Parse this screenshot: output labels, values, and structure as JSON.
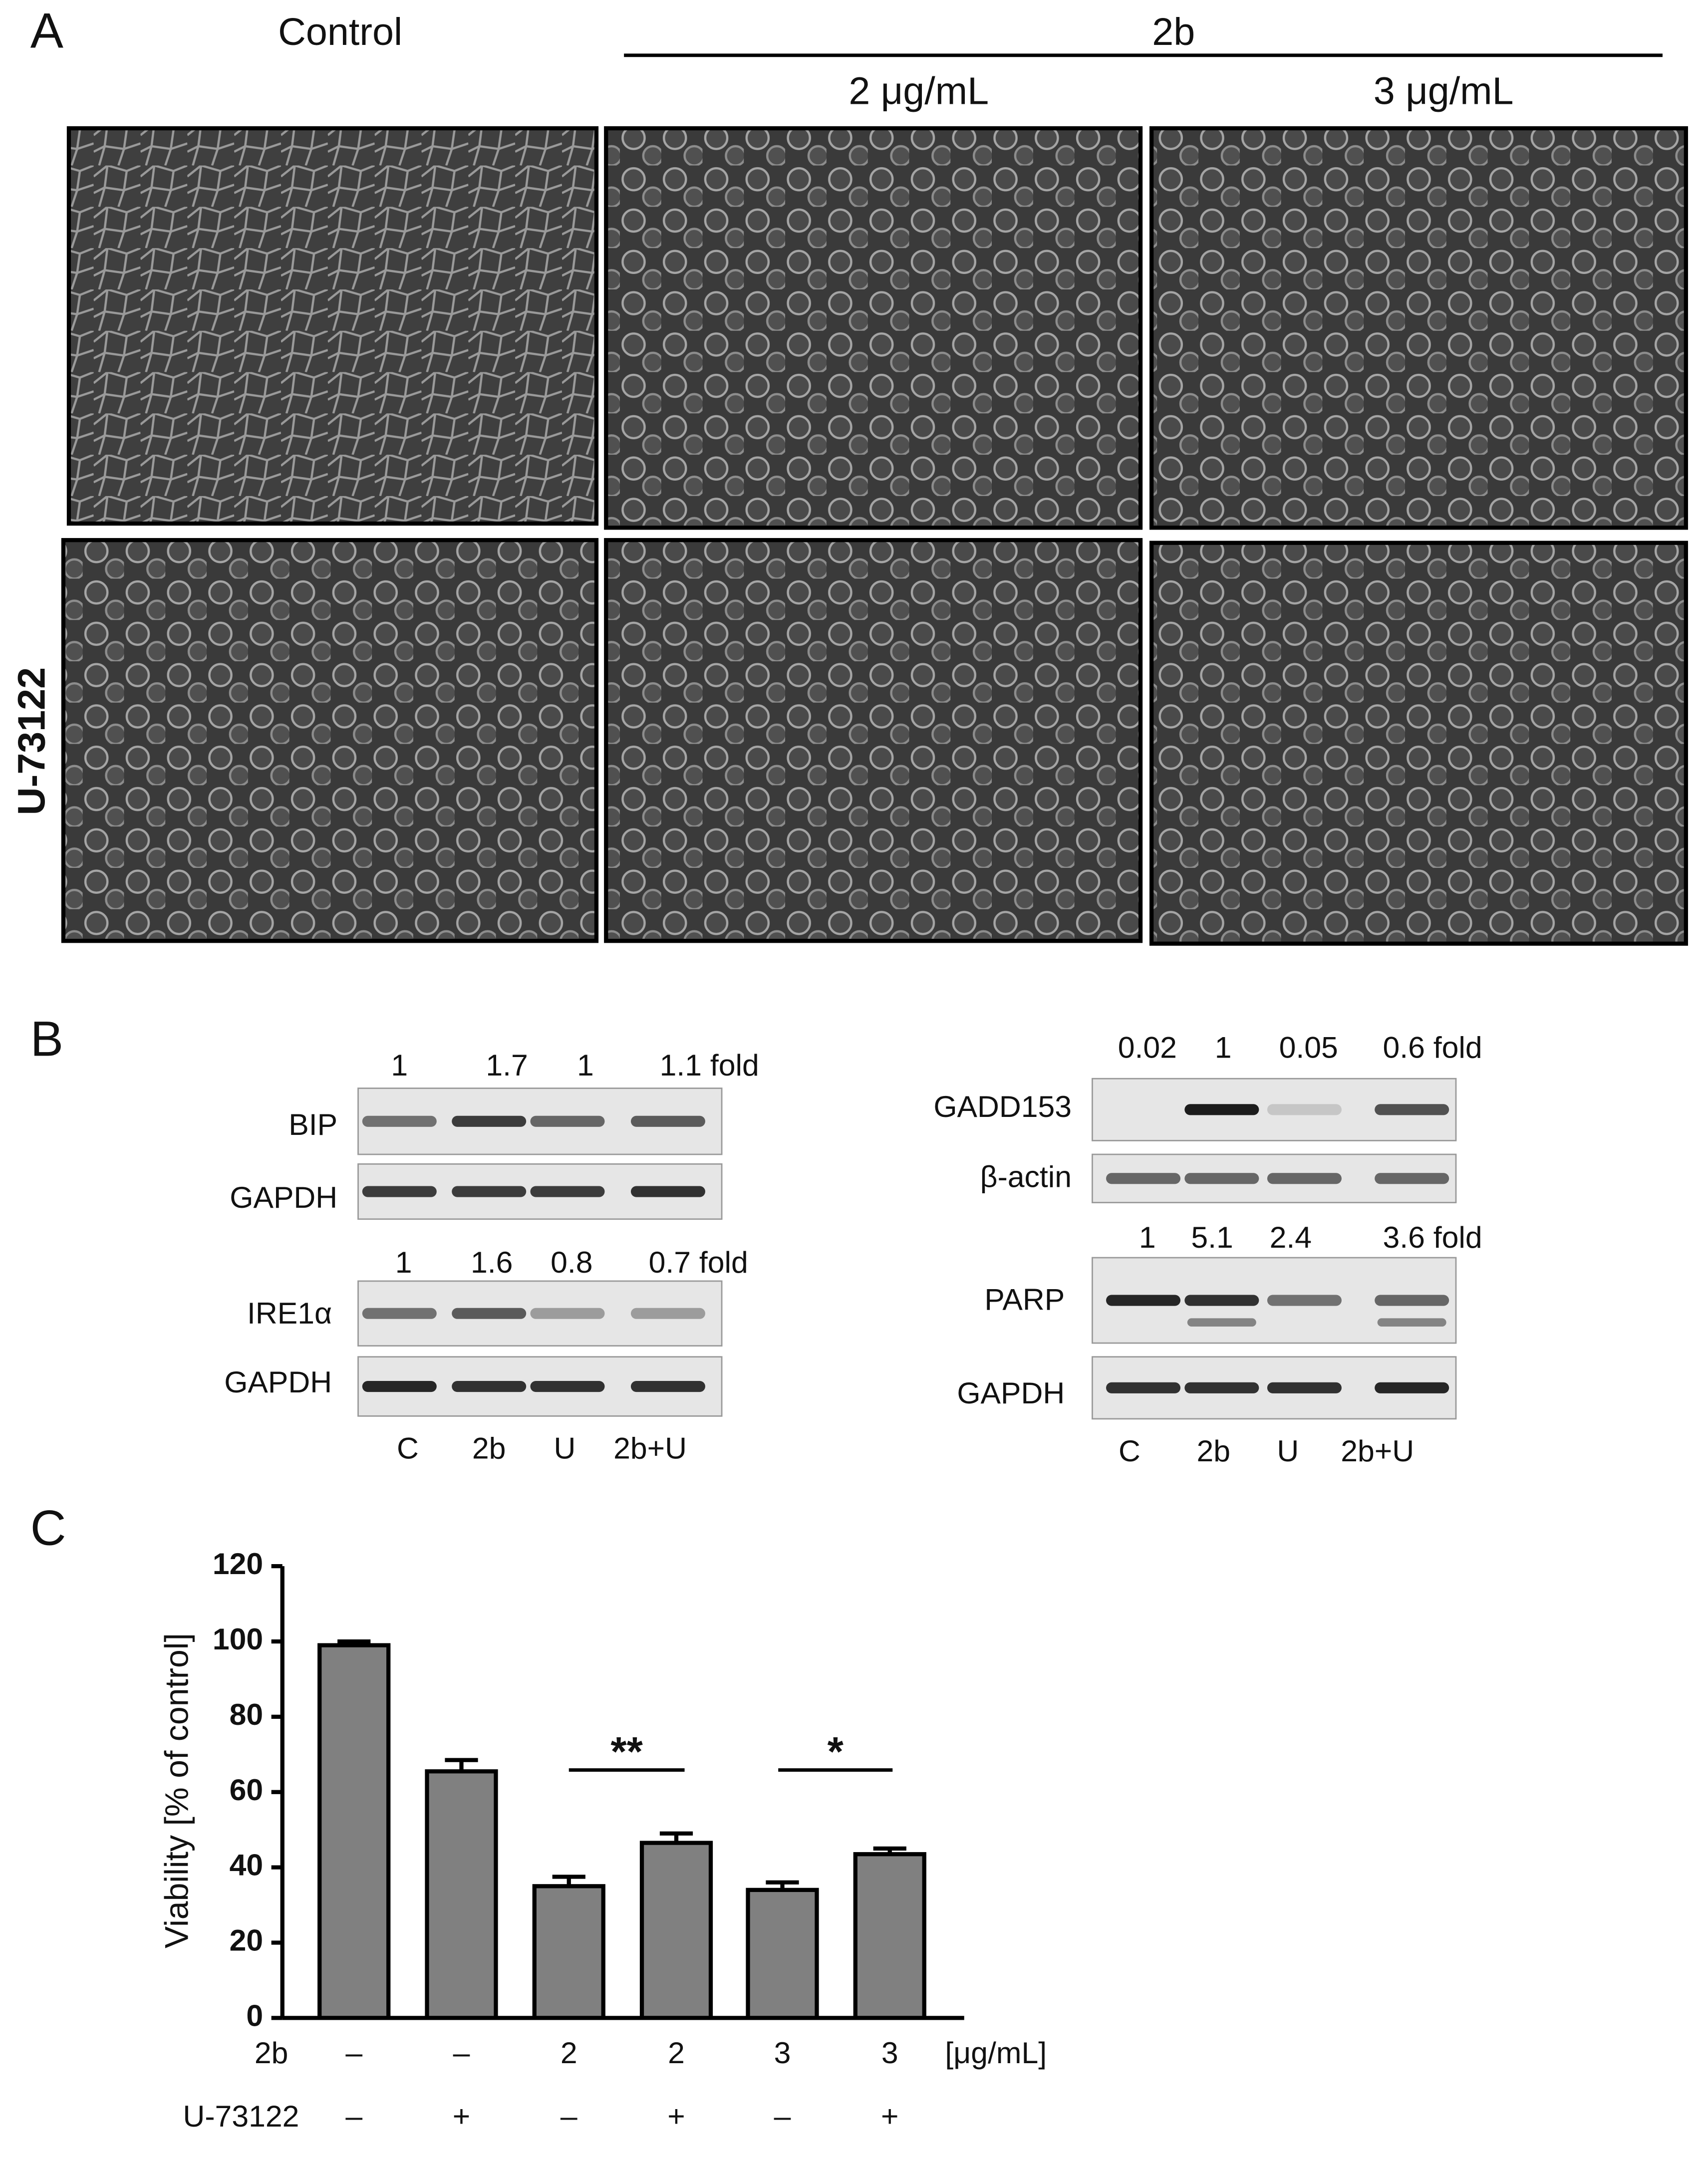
{
  "panel_a": {
    "label": "A",
    "columns": [
      "Control",
      "2 μg/mL",
      "3 μg/mL"
    ],
    "group": "2b",
    "row_label": "U-73122"
  },
  "panel_b": {
    "label": "B",
    "left": [
      {
        "folds": [
          "1",
          "1.7",
          "1",
          "1.1 fold"
        ],
        "rows": [
          "BIP",
          "GAPDH"
        ]
      },
      {
        "folds": [
          "1",
          "1.6",
          "0.8",
          "0.7 fold"
        ],
        "rows": [
          "IRE1α",
          "GAPDH"
        ]
      }
    ],
    "right": [
      {
        "folds": [
          "0.02",
          "1",
          "0.05",
          "0.6 fold"
        ],
        "rows": [
          "GADD153",
          "β-actin"
        ]
      },
      {
        "folds": [
          "1",
          "5.1",
          "2.4",
          "3.6 fold"
        ],
        "rows": [
          "PARP",
          "GAPDH"
        ]
      }
    ],
    "lanes_left": [
      "C",
      "2b",
      "U",
      "2b+U"
    ],
    "lanes_right": [
      "C",
      "2b",
      "U",
      "2b+U"
    ]
  },
  "chart_data": {
    "type": "bar",
    "panel_label": "C",
    "ylabel": "Viability [% of control]",
    "categories": [
      "–",
      "–",
      "2",
      "2",
      "3",
      "3"
    ],
    "categories2": [
      "–",
      "+",
      "–",
      "+",
      "–",
      "+"
    ],
    "category_row_labels": [
      "2b",
      "U-73122"
    ],
    "unit": "[μg/mL]",
    "values": [
      99,
      65.5,
      35,
      46.5,
      34,
      43.5
    ],
    "errors": [
      1,
      3,
      2.5,
      2.5,
      2,
      1.5
    ],
    "color": "#808080",
    "ylim": [
      0,
      120
    ],
    "yticks": [
      0,
      20,
      40,
      60,
      80,
      100,
      120
    ],
    "annotations": [
      "**",
      "*"
    ]
  }
}
